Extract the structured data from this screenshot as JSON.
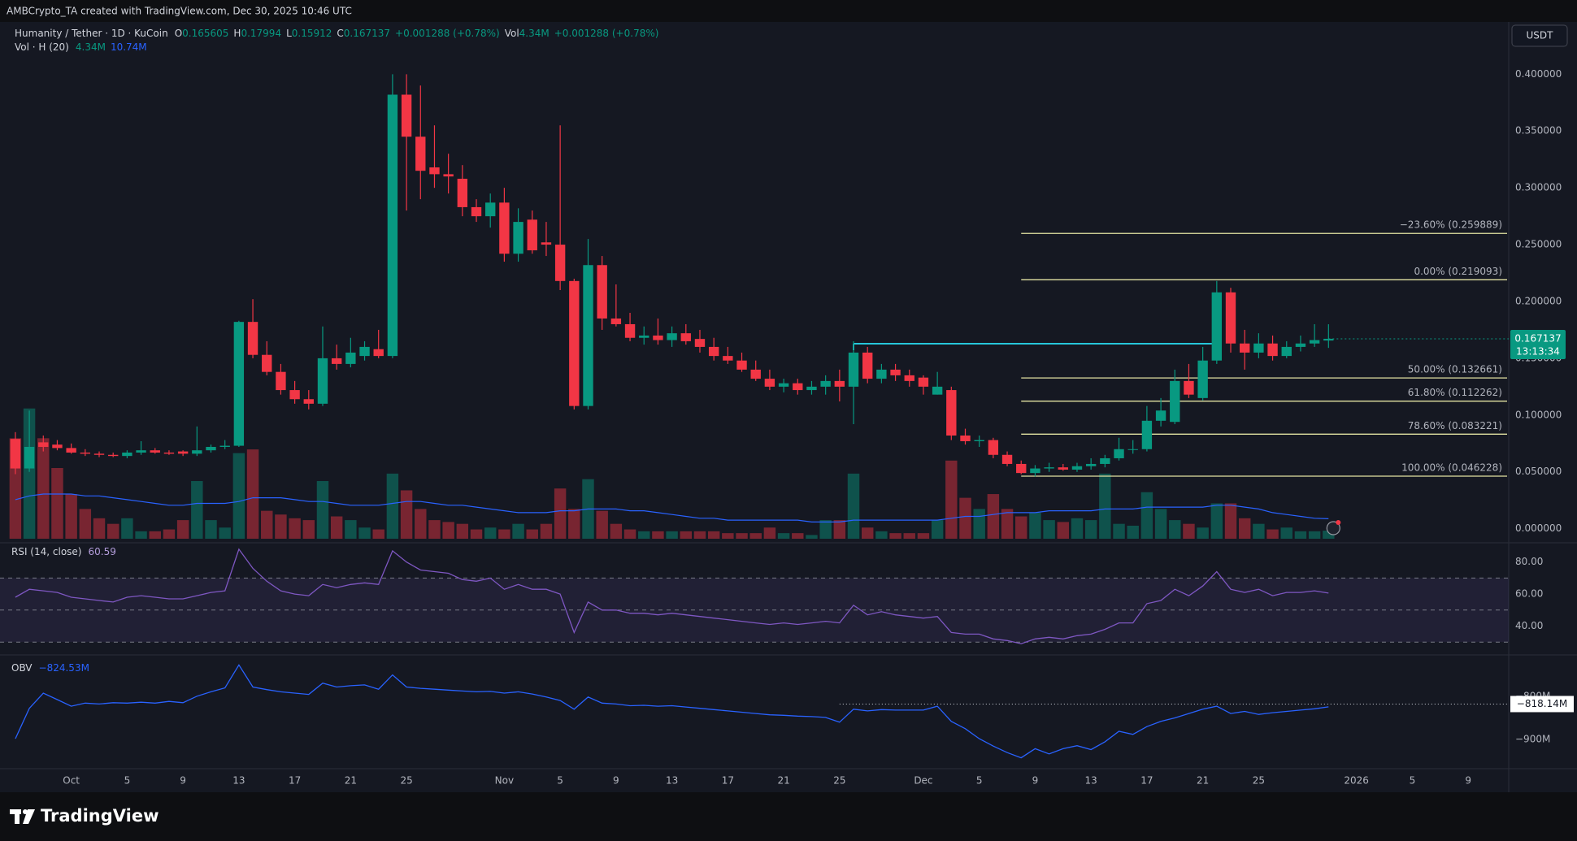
{
  "header": {
    "credit": "AMBCrypto_TA created with TradingView.com, Dec 30, 2025 10:46 UTC",
    "symbol": "Humanity / Tether · 1D · KuCoin",
    "o": "O",
    "h": "H",
    "l": "L",
    "c": "C",
    "change": "+0.001288 (+0.78%)",
    "vol": "Vol",
    "vol_value": "4.34M",
    "vol_change": "+0.001288 (+0.78%)",
    "vol_study": "Vol · H (20)",
    "vol_ma_value": "10.74M",
    "currency": "USDT",
    "countdown": "13:13:34",
    "brand": "TradingView"
  },
  "chart_data": [
    {
      "type": "candlestick",
      "open": [
        0.079,
        0.053,
        0.076,
        0.074,
        0.071,
        0.067,
        0.066,
        0.065,
        0.064,
        0.067,
        0.069,
        0.067,
        0.068,
        0.066,
        0.069,
        0.072,
        0.073,
        0.182,
        0.153,
        0.138,
        0.122,
        0.114,
        0.11,
        0.15,
        0.145,
        0.152,
        0.158,
        0.152,
        0.382,
        0.345,
        0.318,
        0.312,
        0.308,
        0.283,
        0.275,
        0.287,
        0.242,
        0.272,
        0.252,
        0.25,
        0.218,
        0.108,
        0.232,
        0.185,
        0.18,
        0.168,
        0.17,
        0.166,
        0.172,
        0.167,
        0.16,
        0.152,
        0.148,
        0.14,
        0.132,
        0.125,
        0.128,
        0.122,
        0.125,
        0.13,
        0.125,
        0.155,
        0.132,
        0.14,
        0.135,
        0.133,
        0.118,
        0.122,
        0.082,
        0.077,
        0.078,
        0.065,
        0.057,
        0.049,
        0.053,
        0.054,
        0.052,
        0.055,
        0.057,
        0.062,
        0.07,
        0.07,
        0.095,
        0.094,
        0.13,
        0.115,
        0.148,
        0.208,
        0.163,
        0.155,
        0.163,
        0.152,
        0.16,
        0.163,
        0.165605
      ],
      "high": [
        0.085,
        0.104,
        0.082,
        0.078,
        0.075,
        0.07,
        0.068,
        0.067,
        0.069,
        0.077,
        0.071,
        0.069,
        0.069,
        0.09,
        0.074,
        0.078,
        0.183,
        0.202,
        0.165,
        0.145,
        0.13,
        0.122,
        0.178,
        0.162,
        0.168,
        0.165,
        0.175,
        0.4,
        0.4,
        0.39,
        0.355,
        0.33,
        0.32,
        0.29,
        0.295,
        0.3,
        0.282,
        0.28,
        0.27,
        0.355,
        0.22,
        0.255,
        0.24,
        0.215,
        0.19,
        0.178,
        0.185,
        0.178,
        0.18,
        0.175,
        0.168,
        0.16,
        0.155,
        0.148,
        0.14,
        0.132,
        0.132,
        0.13,
        0.135,
        0.14,
        0.165,
        0.16,
        0.145,
        0.145,
        0.14,
        0.135,
        0.138,
        0.125,
        0.088,
        0.082,
        0.08,
        0.068,
        0.06,
        0.056,
        0.058,
        0.057,
        0.058,
        0.062,
        0.065,
        0.08,
        0.078,
        0.108,
        0.115,
        0.14,
        0.145,
        0.16,
        0.218,
        0.212,
        0.175,
        0.172,
        0.17,
        0.165,
        0.17,
        0.18,
        0.17994
      ],
      "low": [
        0.048,
        0.05,
        0.068,
        0.069,
        0.066,
        0.064,
        0.063,
        0.063,
        0.062,
        0.065,
        0.066,
        0.065,
        0.064,
        0.064,
        0.067,
        0.07,
        0.072,
        0.15,
        0.135,
        0.118,
        0.11,
        0.105,
        0.108,
        0.14,
        0.142,
        0.148,
        0.15,
        0.15,
        0.28,
        0.29,
        0.3,
        0.295,
        0.275,
        0.27,
        0.265,
        0.235,
        0.235,
        0.242,
        0.24,
        0.21,
        0.105,
        0.105,
        0.175,
        0.178,
        0.165,
        0.162,
        0.162,
        0.16,
        0.162,
        0.155,
        0.148,
        0.145,
        0.138,
        0.13,
        0.122,
        0.12,
        0.118,
        0.118,
        0.118,
        0.112,
        0.092,
        0.128,
        0.128,
        0.13,
        0.125,
        0.118,
        0.118,
        0.078,
        0.074,
        0.072,
        0.062,
        0.055,
        0.048,
        0.046,
        0.05,
        0.051,
        0.05,
        0.052,
        0.054,
        0.06,
        0.066,
        0.068,
        0.09,
        0.092,
        0.115,
        0.113,
        0.145,
        0.155,
        0.14,
        0.15,
        0.148,
        0.15,
        0.156,
        0.16,
        0.15912
      ],
      "close": [
        0.053,
        0.072,
        0.072,
        0.071,
        0.067,
        0.066,
        0.065,
        0.064,
        0.067,
        0.069,
        0.067,
        0.066,
        0.066,
        0.069,
        0.072,
        0.073,
        0.182,
        0.153,
        0.138,
        0.122,
        0.114,
        0.11,
        0.15,
        0.145,
        0.155,
        0.16,
        0.152,
        0.382,
        0.345,
        0.315,
        0.312,
        0.31,
        0.283,
        0.275,
        0.287,
        0.242,
        0.27,
        0.245,
        0.25,
        0.218,
        0.108,
        0.232,
        0.185,
        0.18,
        0.168,
        0.17,
        0.166,
        0.172,
        0.165,
        0.16,
        0.152,
        0.148,
        0.14,
        0.132,
        0.125,
        0.128,
        0.122,
        0.125,
        0.13,
        0.125,
        0.155,
        0.132,
        0.14,
        0.135,
        0.13,
        0.125,
        0.125,
        0.082,
        0.077,
        0.078,
        0.065,
        0.057,
        0.049,
        0.053,
        0.054,
        0.052,
        0.055,
        0.057,
        0.062,
        0.07,
        0.07,
        0.095,
        0.104,
        0.13,
        0.118,
        0.148,
        0.208,
        0.163,
        0.155,
        0.163,
        0.152,
        0.16,
        0.163,
        0.166,
        0.167137
      ],
      "volume": [
        54,
        70,
        54,
        38,
        24,
        16,
        11,
        8,
        11,
        4,
        4,
        5,
        10,
        31,
        10,
        6,
        46,
        48,
        15,
        13,
        11,
        10,
        31,
        12,
        10,
        6,
        5,
        35,
        26,
        16,
        10,
        9,
        8,
        5,
        6,
        5,
        8,
        5,
        8,
        27,
        16,
        32,
        15,
        8,
        5,
        4,
        4,
        4,
        4,
        4,
        4,
        3,
        3,
        3,
        6,
        3,
        3,
        2,
        10,
        10,
        35,
        6,
        4,
        3,
        3,
        3,
        10,
        42,
        22,
        16,
        24,
        16,
        12,
        14,
        10,
        9,
        11,
        10,
        35,
        8,
        7,
        25,
        16,
        10,
        8,
        6,
        19,
        19,
        11,
        8,
        5,
        6,
        4,
        4,
        4.34
      ],
      "volume_ma": [
        21,
        23,
        24,
        24,
        24,
        23,
        23,
        22,
        21,
        20,
        19,
        18,
        18,
        19,
        19,
        19,
        20,
        22,
        22,
        22,
        21,
        20,
        20,
        19,
        18,
        18,
        18,
        19,
        20,
        20,
        19,
        18,
        18,
        17,
        16,
        15,
        14,
        14,
        14,
        15,
        15,
        16,
        16,
        16,
        15,
        15,
        14,
        13,
        12,
        11,
        11,
        10,
        10,
        10,
        10,
        10,
        10,
        9,
        9,
        9,
        10,
        10,
        10,
        10,
        10,
        10,
        10,
        11,
        12,
        12,
        13,
        14,
        14,
        14,
        15,
        15,
        15,
        15,
        16,
        16,
        16,
        17,
        17,
        17,
        17,
        17,
        18,
        18,
        17,
        16,
        14,
        13,
        12,
        11,
        10.74
      ],
      "up_color": "#089981",
      "down_color": "#f23645",
      "volume_ma_color": "#2962ff",
      "ylim": [
        -0.0124,
        0.446
      ],
      "yticks": [
        {
          "value": 0,
          "label": "0.000000"
        },
        {
          "value": 0.05,
          "label": "0.050000"
        },
        {
          "value": 0.1,
          "label": "0.100000"
        },
        {
          "value": 0.15,
          "label": "0.150000"
        },
        {
          "value": 0.2,
          "label": "0.200000"
        },
        {
          "value": 0.25,
          "label": "0.250000"
        },
        {
          "value": 0.3,
          "label": "0.300000"
        },
        {
          "value": 0.35,
          "label": "0.350000"
        },
        {
          "value": 0.4,
          "label": "0.400000"
        }
      ],
      "xlim": [
        -1.1,
        106.9
      ],
      "xticks": [
        {
          "value": 4,
          "label": "Oct"
        },
        {
          "value": 8,
          "label": "5"
        },
        {
          "value": 12,
          "label": "9"
        },
        {
          "value": 16,
          "label": "13"
        },
        {
          "value": 20,
          "label": "17"
        },
        {
          "value": 24,
          "label": "21"
        },
        {
          "value": 28,
          "label": "25"
        },
        {
          "value": 35,
          "label": "Nov"
        },
        {
          "value": 39,
          "label": "5"
        },
        {
          "value": 43,
          "label": "9"
        },
        {
          "value": 47,
          "label": "13"
        },
        {
          "value": 51,
          "label": "17"
        },
        {
          "value": 55,
          "label": "21"
        },
        {
          "value": 59,
          "label": "25"
        },
        {
          "value": 65,
          "label": "Dec"
        },
        {
          "value": 69,
          "label": "5"
        },
        {
          "value": 73,
          "label": "9"
        },
        {
          "value": 77,
          "label": "13"
        },
        {
          "value": 81,
          "label": "17"
        },
        {
          "value": 85,
          "label": "21"
        },
        {
          "value": 89,
          "label": "25"
        },
        {
          "value": 96,
          "label": "2026"
        },
        {
          "value": 100,
          "label": "5"
        },
        {
          "value": 104,
          "label": "9"
        }
      ],
      "fib_color": "#e3e3a3",
      "fib": [
        {
          "value": 0.259889,
          "label": "−23.60% (0.259889)"
        },
        {
          "value": 0.219093,
          "label": "0.00% (0.219093)"
        },
        {
          "value": 0.132661,
          "label": "50.00% (0.132661)"
        },
        {
          "value": 0.112262,
          "label": "61.80% (0.112262)"
        },
        {
          "value": 0.083221,
          "label": "78.60% (0.083221)"
        },
        {
          "value": 0.046228,
          "label": "100.00% (0.046228)"
        }
      ],
      "hline": 0.1628,
      "hline_color": "#26c6da"
    },
    {
      "type": "line",
      "title": "RSI (14, close)",
      "color": "#7e57c2",
      "values": [
        58,
        63,
        62,
        61,
        58,
        57,
        56,
        55,
        58,
        59,
        58,
        57,
        57,
        59,
        61,
        62,
        88,
        76,
        68,
        62,
        60,
        59,
        66,
        64,
        66,
        67,
        66,
        87,
        80,
        75,
        74,
        73,
        69,
        68,
        70,
        63,
        66,
        63,
        63,
        60,
        36,
        55,
        50,
        50,
        48,
        48,
        47,
        48,
        47,
        46,
        45,
        44,
        43,
        42,
        41,
        42,
        41,
        42,
        43,
        42,
        53,
        47,
        49,
        47,
        46,
        45,
        46,
        36,
        35,
        35,
        32,
        31,
        29,
        32,
        33,
        32,
        34,
        35,
        38,
        42,
        42,
        54,
        56,
        63,
        59,
        65,
        74,
        63,
        61,
        63,
        59,
        61,
        61,
        62,
        60.59
      ],
      "ylim": [
        22,
        92
      ],
      "levels": [
        70,
        50,
        30
      ],
      "yticks": [
        {
          "value": 80,
          "label": "80.00"
        },
        {
          "value": 60,
          "label": "60.00"
        },
        {
          "value": 40,
          "label": "40.00"
        }
      ]
    },
    {
      "type": "line",
      "title": "OBV",
      "value_label": "−824.53M",
      "color": "#2962ff",
      "values": [
        -898,
        -828,
        -793,
        -808,
        -823,
        -816,
        -818,
        -815,
        -816,
        -814,
        -816,
        -812,
        -815,
        -800,
        -790,
        -781,
        -728,
        -779,
        -785,
        -790,
        -793,
        -796,
        -770,
        -779,
        -776,
        -774,
        -784,
        -751,
        -779,
        -782,
        -784,
        -786,
        -788,
        -790,
        -789,
        -793,
        -790,
        -795,
        -802,
        -810,
        -830,
        -802,
        -816,
        -818,
        -822,
        -821,
        -823,
        -822,
        -825,
        -828,
        -831,
        -834,
        -837,
        -840,
        -843,
        -844,
        -846,
        -847,
        -849,
        -860,
        -830,
        -834,
        -831,
        -832,
        -832,
        -832,
        -823,
        -858,
        -875,
        -898,
        -915,
        -930,
        -942,
        -921,
        -933,
        -921,
        -914,
        -923,
        -905,
        -881,
        -888,
        -870,
        -858,
        -850,
        -840,
        -830,
        -823,
        -840,
        -835,
        -842,
        -838,
        -835,
        -832,
        -829,
        -824.53
      ],
      "ylim": [
        -967,
        -705
      ],
      "yticks": [
        {
          "value": -800,
          "label": "−800M"
        },
        {
          "value": -900,
          "label": "−900M"
        }
      ],
      "hline": {
        "value": -818.14,
        "label": "−818.14M"
      }
    }
  ]
}
